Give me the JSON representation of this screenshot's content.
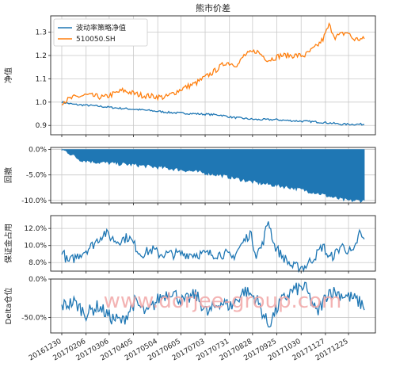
{
  "title": "熊市价差",
  "watermark": "www.dorjee-group.com",
  "colors": {
    "blue": "#1f77b4",
    "orange": "#ff7f0e",
    "watermark": "#f1a6a6"
  },
  "x_axis": {
    "tick_labels": [
      "20161230",
      "20170206",
      "20170306",
      "20170405",
      "20170504",
      "20170605",
      "20170703",
      "20170731",
      "20170828",
      "20170925",
      "20171030",
      "20171127",
      "20171225"
    ],
    "n_points": 250
  },
  "chart_data": [
    {
      "id": "nav",
      "type": "line",
      "ylabel": "净值",
      "ylim": [
        0.86,
        1.37
      ],
      "yticks": [
        {
          "v": 0.9,
          "label": "0.9"
        },
        {
          "v": 1.0,
          "label": "1.0"
        },
        {
          "v": 1.1,
          "label": "1.1"
        },
        {
          "v": 1.2,
          "label": "1.2"
        },
        {
          "v": 1.3,
          "label": "1.3"
        }
      ],
      "legend": {
        "position": "top-left"
      },
      "series": [
        {
          "name": "波动率策略净值",
          "color": "#1f77b4",
          "knots": [
            [
              0,
              1.0
            ],
            [
              10,
              0.99
            ],
            [
              25,
              0.985
            ],
            [
              45,
              0.975
            ],
            [
              70,
              0.965
            ],
            [
              90,
              0.955
            ],
            [
              110,
              0.95
            ],
            [
              130,
              0.945
            ],
            [
              140,
              0.935
            ],
            [
              160,
              0.925
            ],
            [
              175,
              0.925
            ],
            [
              190,
              0.92
            ],
            [
              210,
              0.915
            ],
            [
              222,
              0.91
            ],
            [
              230,
              0.905
            ],
            [
              240,
              0.905
            ],
            [
              249,
              0.905
            ]
          ],
          "noise": 0.004
        },
        {
          "name": "510050.SH",
          "color": "#ff7f0e",
          "knots": [
            [
              0,
              1.0
            ],
            [
              10,
              1.02
            ],
            [
              20,
              1.03
            ],
            [
              35,
              1.02
            ],
            [
              50,
              1.05
            ],
            [
              65,
              1.03
            ],
            [
              85,
              1.02
            ],
            [
              100,
              1.06
            ],
            [
              110,
              1.08
            ],
            [
              125,
              1.13
            ],
            [
              135,
              1.17
            ],
            [
              145,
              1.16
            ],
            [
              150,
              1.2
            ],
            [
              160,
              1.22
            ],
            [
              170,
              1.18
            ],
            [
              180,
              1.2
            ],
            [
              190,
              1.2
            ],
            [
              200,
              1.2
            ],
            [
              210,
              1.24
            ],
            [
              215,
              1.27
            ],
            [
              220,
              1.33
            ],
            [
              225,
              1.28
            ],
            [
              235,
              1.3
            ],
            [
              240,
              1.27
            ],
            [
              249,
              1.27
            ]
          ],
          "noise": 0.012
        }
      ]
    },
    {
      "id": "drawdown",
      "type": "area",
      "ylabel": "回撤",
      "ylim": [
        -0.105,
        0.004
      ],
      "yticks": [
        {
          "v": 0.0,
          "label": "0.0%"
        },
        {
          "v": -0.05,
          "label": "-5.0%"
        },
        {
          "v": -0.1,
          "label": "-10.0%"
        }
      ],
      "series": [
        {
          "name": "",
          "color": "#1f77b4",
          "knots": [
            [
              0,
              0.0
            ],
            [
              5,
              -0.005
            ],
            [
              15,
              -0.02
            ],
            [
              30,
              -0.025
            ],
            [
              60,
              -0.03
            ],
            [
              80,
              -0.035
            ],
            [
              100,
              -0.04
            ],
            [
              130,
              -0.05
            ],
            [
              140,
              -0.055
            ],
            [
              160,
              -0.065
            ],
            [
              190,
              -0.075
            ],
            [
              210,
              -0.085
            ],
            [
              225,
              -0.095
            ],
            [
              235,
              -0.1
            ],
            [
              249,
              -0.1
            ]
          ],
          "noise": 0.004
        }
      ]
    },
    {
      "id": "margin",
      "type": "line",
      "ylabel": "保证金占用",
      "ylim": [
        0.07,
        0.135
      ],
      "yticks": [
        {
          "v": 0.08,
          "label": "8.0%"
        },
        {
          "v": 0.1,
          "label": "10.0%"
        },
        {
          "v": 0.12,
          "label": "12.0%"
        }
      ],
      "series": [
        {
          "name": "",
          "color": "#1f77b4",
          "knots": [
            [
              0,
              0.095
            ],
            [
              5,
              0.08
            ],
            [
              15,
              0.09
            ],
            [
              25,
              0.1
            ],
            [
              35,
              0.115
            ],
            [
              45,
              0.105
            ],
            [
              55,
              0.11
            ],
            [
              65,
              0.09
            ],
            [
              75,
              0.095
            ],
            [
              80,
              0.09
            ],
            [
              90,
              0.09
            ],
            [
              100,
              0.09
            ],
            [
              110,
              0.09
            ],
            [
              125,
              0.09
            ],
            [
              135,
              0.09
            ],
            [
              140,
              0.085
            ],
            [
              150,
              0.105
            ],
            [
              155,
              0.115
            ],
            [
              160,
              0.09
            ],
            [
              165,
              0.1
            ],
            [
              170,
              0.13
            ],
            [
              175,
              0.1
            ],
            [
              180,
              0.09
            ],
            [
              190,
              0.075
            ],
            [
              200,
              0.075
            ],
            [
              210,
              0.09
            ],
            [
              215,
              0.1
            ],
            [
              220,
              0.085
            ],
            [
              225,
              0.09
            ],
            [
              230,
              0.1
            ],
            [
              240,
              0.09
            ],
            [
              245,
              0.115
            ],
            [
              249,
              0.105
            ]
          ],
          "noise": 0.006
        }
      ]
    },
    {
      "id": "delta",
      "type": "line",
      "ylabel": "Delta仓位",
      "ylim": [
        -0.7,
        0.0
      ],
      "yticks": [
        {
          "v": 0.0,
          "label": "0.0%"
        },
        {
          "v": -0.5,
          "label": "-50.0%"
        }
      ],
      "series": [
        {
          "name": "",
          "color": "#1f77b4",
          "knots": [
            [
              0,
              -0.35
            ],
            [
              10,
              -0.3
            ],
            [
              20,
              -0.45
            ],
            [
              30,
              -0.35
            ],
            [
              40,
              -0.5
            ],
            [
              50,
              -0.55
            ],
            [
              60,
              -0.3
            ],
            [
              70,
              -0.45
            ],
            [
              80,
              -0.25
            ],
            [
              90,
              -0.15
            ],
            [
              100,
              -0.3
            ],
            [
              110,
              -0.2
            ],
            [
              120,
              -0.45
            ],
            [
              130,
              -0.3
            ],
            [
              140,
              -0.35
            ],
            [
              150,
              -0.15
            ],
            [
              160,
              -0.25
            ],
            [
              170,
              -0.6
            ],
            [
              180,
              -0.3
            ],
            [
              190,
              -0.15
            ],
            [
              200,
              -0.1
            ],
            [
              210,
              -0.45
            ],
            [
              220,
              -0.15
            ],
            [
              230,
              -0.2
            ],
            [
              240,
              -0.25
            ],
            [
              249,
              -0.35
            ]
          ],
          "noise": 0.09
        }
      ]
    }
  ]
}
